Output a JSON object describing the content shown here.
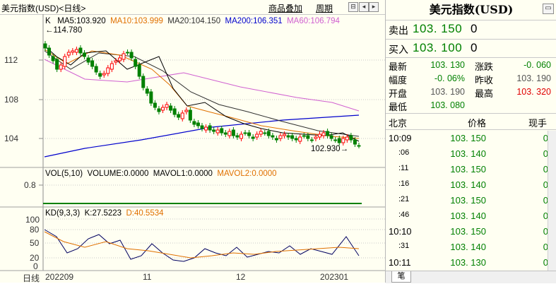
{
  "header": {
    "title": "美元指数(USD)<日线>",
    "link_overlay": "商品叠加",
    "link_period": "周期"
  },
  "main_chart": {
    "k_label": "K",
    "ma5": "MA5:103.920",
    "ma10": "MA10:103.999",
    "ma20": "MA20:104.150",
    "ma200": "MA200:106.351",
    "ma60": "MA60:106.794",
    "high_mark": "114.780",
    "low_mark": "102.930",
    "y_ticks": [
      "112",
      "108",
      "104"
    ],
    "colors": {
      "up": "#ff0000",
      "down": "#008000",
      "ma5": "#000000",
      "ma10": "#e07000",
      "ma20": "#303030",
      "ma60": "#d060d0",
      "ma200": "#0000cc"
    }
  },
  "vol_panel": {
    "label": "VOL(5,10)",
    "volume": "VOLUME:0.0000",
    "mavol1": "MAVOL1:0.0000",
    "mavol2": "MAVOL2:0.0000",
    "y_tick": "0.8"
  },
  "kd_panel": {
    "label": "KD(9,3,3)",
    "k": "K:27.5223",
    "d": "D:40.5534",
    "y_ticks": [
      "100",
      "80",
      "50",
      "20",
      "0"
    ]
  },
  "x_axis": {
    "left_label": "日线",
    "ticks": [
      "202209",
      "11",
      "12",
      "202301"
    ]
  },
  "quote_panel": {
    "title": "美元指数(USD)",
    "sell_label": "卖出",
    "sell_price": "103. 150",
    "sell_vol": "0",
    "buy_label": "买入",
    "buy_price": "103. 100",
    "buy_vol": "0",
    "stats": [
      {
        "label": "最新",
        "value": "103. 130",
        "color": "#008000"
      },
      {
        "label": "涨跌",
        "value": "-0. 060",
        "color": "#008000"
      },
      {
        "label": "幅度",
        "value": "-0. 06%",
        "color": "#008000"
      },
      {
        "label": "昨收",
        "value": "103. 190",
        "color": "#000000"
      },
      {
        "label": "开盘",
        "value": "103. 190",
        "color": "#000000"
      },
      {
        "label": "最高",
        "value": "103. 320",
        "color": "#e00000"
      },
      {
        "label": "最低",
        "value": "103. 080",
        "color": "#008000"
      }
    ],
    "tick_header": {
      "place": "北京",
      "price": "价格",
      "vol": "现手"
    },
    "ticks": [
      {
        "time": "10:09",
        "price": "103. 150",
        "vol": "0"
      },
      {
        "time": ":06",
        "price": "103. 140",
        "vol": "0"
      },
      {
        "time": ":11",
        "price": "103. 150",
        "vol": "0"
      },
      {
        "time": ":16",
        "price": "103. 140",
        "vol": "0"
      },
      {
        "time": ":21",
        "price": "103. 150",
        "vol": "0"
      },
      {
        "time": ":46",
        "price": "103. 140",
        "vol": "0"
      },
      {
        "time": "10:10",
        "price": "103. 150",
        "vol": "0"
      },
      {
        "time": ":31",
        "price": "103. 140",
        "vol": "0"
      },
      {
        "time": "10:11",
        "price": "103. 130",
        "vol": "0"
      }
    ],
    "tab_label": "笔"
  }
}
